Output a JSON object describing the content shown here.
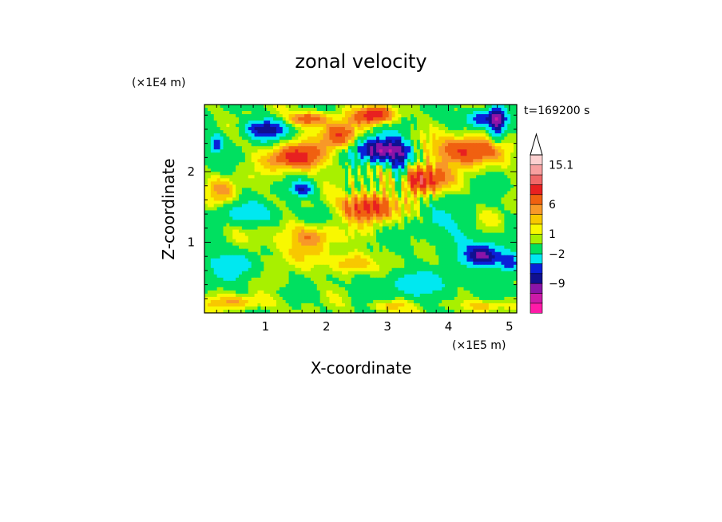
{
  "chart_data": {
    "type": "heatmap",
    "title": "zonal velocity",
    "xlabel": "X-coordinate",
    "ylabel": "Z-coordinate",
    "x_unit": "(×1E5 m)",
    "y_unit": "(×1E4 m)",
    "time_label": "t=169200 s",
    "xlim": [
      0,
      5.12
    ],
    "ylim": [
      0,
      2.95
    ],
    "xticks": [
      1,
      2,
      3,
      4,
      5
    ],
    "yticks": [
      1,
      2
    ],
    "colorbar": {
      "colors": [
        "#ff1aa8",
        "#cc1aa8",
        "#8a14a8",
        "#101090",
        "#0a20d8",
        "#00e8f0",
        "#00e060",
        "#a8f000",
        "#f8f800",
        "#f8c800",
        "#f89828",
        "#f06010",
        "#e82020",
        "#f06868",
        "#f8a0a0",
        "#fcd0d0"
      ],
      "tick_labels": [
        "-9",
        "-2",
        "1",
        "6",
        "15.1"
      ],
      "tick_levels": [
        3,
        6,
        8,
        11,
        15
      ],
      "extend_top": true
    },
    "features": [
      {
        "x": 1.0,
        "z": 2.6,
        "value": -7,
        "spread_x": 0.35,
        "spread_z": 0.13
      },
      {
        "x": 0.2,
        "z": 2.4,
        "value": -6,
        "spread_x": 0.12,
        "spread_z": 0.12
      },
      {
        "x": 1.5,
        "z": 2.2,
        "value": 7,
        "spread_x": 0.45,
        "spread_z": 0.18
      },
      {
        "x": 1.7,
        "z": 2.75,
        "value": 6,
        "spread_x": 0.3,
        "spread_z": 0.1
      },
      {
        "x": 1.6,
        "z": 1.75,
        "value": -6,
        "spread_x": 0.18,
        "spread_z": 0.1
      },
      {
        "x": 2.9,
        "z": 2.3,
        "value": -10,
        "spread_x": 0.4,
        "spread_z": 0.18
      },
      {
        "x": 2.2,
        "z": 2.5,
        "value": 6,
        "spread_x": 0.3,
        "spread_z": 0.2
      },
      {
        "x": 2.8,
        "z": 2.8,
        "value": 8,
        "spread_x": 0.3,
        "spread_z": 0.12
      },
      {
        "x": 2.7,
        "z": 1.5,
        "value": 7,
        "spread_x": 0.45,
        "spread_z": 0.2
      },
      {
        "x": 3.5,
        "z": 1.9,
        "value": 8,
        "spread_x": 0.45,
        "spread_z": 0.2
      },
      {
        "x": 4.3,
        "z": 2.3,
        "value": 7,
        "spread_x": 0.5,
        "spread_z": 0.2
      },
      {
        "x": 4.55,
        "z": 2.75,
        "value": -6,
        "spread_x": 0.3,
        "spread_z": 0.12
      },
      {
        "x": 4.8,
        "z": 2.7,
        "value": -7,
        "spread_x": 0.12,
        "spread_z": 0.25
      },
      {
        "x": 4.6,
        "z": 0.8,
        "value": -8,
        "spread_x": 0.3,
        "spread_z": 0.15
      },
      {
        "x": 5.0,
        "z": 0.7,
        "value": -6,
        "spread_x": 0.15,
        "spread_z": 0.15
      },
      {
        "x": 0.5,
        "z": 0.7,
        "value": -3,
        "spread_x": 0.5,
        "spread_z": 0.25
      },
      {
        "x": 1.3,
        "z": 0.9,
        "value": 2,
        "spread_x": 0.6,
        "spread_z": 0.3
      },
      {
        "x": 1.8,
        "z": 1.1,
        "value": 3,
        "spread_x": 0.4,
        "spread_z": 0.15
      },
      {
        "x": 2.4,
        "z": 0.7,
        "value": 4,
        "spread_x": 0.3,
        "spread_z": 0.15
      },
      {
        "x": 3.5,
        "z": 0.4,
        "value": -3,
        "spread_x": 0.8,
        "spread_z": 0.18
      },
      {
        "x": 0.3,
        "z": 1.75,
        "value": 3,
        "spread_x": 0.25,
        "spread_z": 0.2
      },
      {
        "x": 0.8,
        "z": 1.4,
        "value": -3,
        "spread_x": 0.6,
        "spread_z": 0.15
      },
      {
        "x": 4.7,
        "z": 1.3,
        "value": 2,
        "spread_x": 0.3,
        "spread_z": 0.2
      },
      {
        "x": 0.6,
        "z": 0.15,
        "value": 3,
        "spread_x": 0.5,
        "spread_z": 0.1
      },
      {
        "x": 3.0,
        "z": 0.1,
        "value": 3,
        "spread_x": 0.3,
        "spread_z": 0.08
      },
      {
        "x": 4.6,
        "z": 0.1,
        "value": 3,
        "spread_x": 0.4,
        "spread_z": 0.08
      },
      {
        "x": 3.2,
        "z": 2.0,
        "value": -6,
        "spread_x": 0.15,
        "spread_z": 0.35
      },
      {
        "x": 4.2,
        "z": 1.2,
        "value": -2,
        "spread_x": 0.6,
        "spread_z": 0.4
      }
    ]
  }
}
